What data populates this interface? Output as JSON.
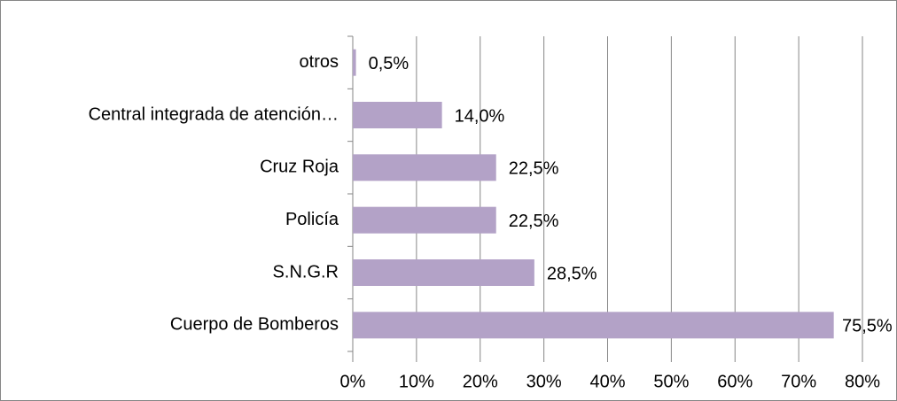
{
  "chart_data": {
    "type": "barh",
    "categories": [
      "otros",
      "Central integrada de atención…",
      "Cruz Roja",
      "Policía",
      "S.N.G.R",
      "Cuerpo de Bomberos"
    ],
    "values": [
      0.5,
      14.0,
      22.5,
      22.5,
      28.5,
      75.5
    ],
    "value_labels": [
      "0,5%",
      "14,0%",
      "22,5%",
      "22,5%",
      "28,5%",
      "75,5%"
    ],
    "color": "#b3a2c7",
    "xlim": [
      0,
      80
    ],
    "xticks": [
      {
        "value": 0,
        "label": "0%"
      },
      {
        "value": 10,
        "label": "10%"
      },
      {
        "value": 20,
        "label": "20%"
      },
      {
        "value": 30,
        "label": "30%"
      },
      {
        "value": 40,
        "label": "40%"
      },
      {
        "value": 50,
        "label": "50%"
      },
      {
        "value": 60,
        "label": "60%"
      },
      {
        "value": 70,
        "label": "70%"
      },
      {
        "value": 80,
        "label": "80%"
      }
    ],
    "grid": true
  }
}
